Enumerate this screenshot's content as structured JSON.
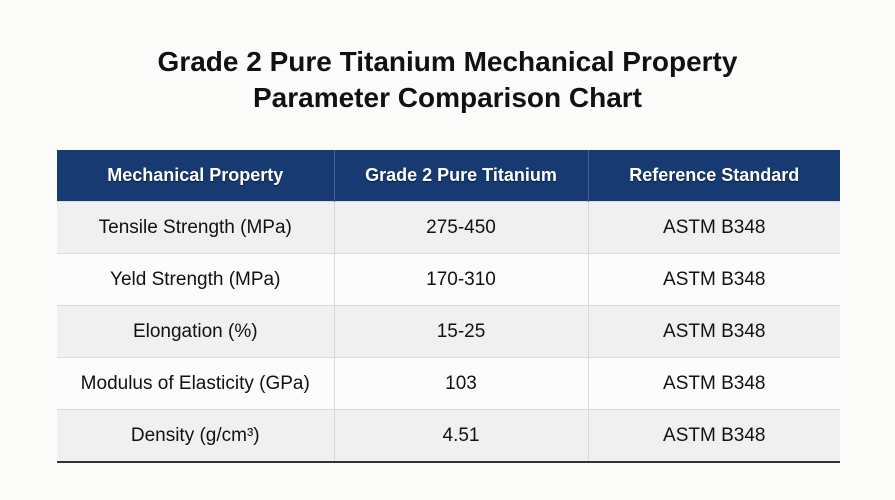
{
  "header": {
    "title": "Grade 2 Pure Titanium Mechanical Property Parameter Comparison Chart"
  },
  "table": {
    "columns": [
      "Mechanical Property",
      "Grade 2 Pure Titanium",
      "Reference Standard"
    ],
    "rows": [
      [
        "Tensile Strength (MPa)",
        "275-450",
        "ASTM B348"
      ],
      [
        "Yeld Strength (MPa)",
        "170-310",
        "ASTM B348"
      ],
      [
        "Elongation (%)",
        "15-25",
        "ASTM B348"
      ],
      [
        "Modulus of Elasticity (GPa)",
        "103",
        "ASTM B348"
      ],
      [
        "Density (g/cm³)",
        "4.51",
        "ASTM B348"
      ]
    ]
  }
}
